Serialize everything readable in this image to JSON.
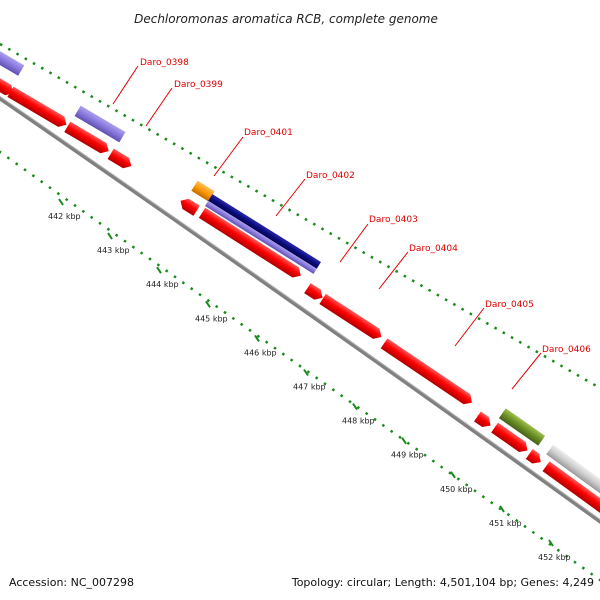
{
  "title": "Dechloromonas aromatica RCB, complete genome",
  "footer": {
    "accession": "Accession: NC_007298",
    "summary": "Topology: circular; Length: 4,501,104 bp; Genes: 4,249"
  },
  "ticks": [
    "442 kbp",
    "443 kbp",
    "444 kbp",
    "445 kbp",
    "446 kbp",
    "447 kbp",
    "448 kbp",
    "449 kbp",
    "450 kbp",
    "451 kbp",
    "452 kbp"
  ],
  "gene_labels": [
    "Daro_0398",
    "Daro_0399",
    "Daro_0401",
    "Daro_0402",
    "Daro_0403",
    "Daro_0404",
    "Daro_0405",
    "Daro_0406"
  ],
  "colors": {
    "cds": "#ff0000",
    "feature_purple": "#8877dd",
    "feature_navy": "#0b0b80",
    "feature_orange": "#ff9900",
    "feature_olive": "#6b8e23",
    "feature_gray": "#cccccc",
    "backbone": "#888888",
    "ruler": "#1a8a1a",
    "label": "#e00000"
  }
}
